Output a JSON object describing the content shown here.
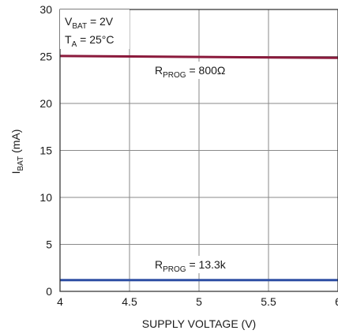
{
  "chart_data": {
    "type": "line",
    "xlabel": "SUPPLY VOLTAGE (V)",
    "ylabel": {
      "main": "I",
      "sub": "BAT",
      "tail": " (mA)"
    },
    "xlim": [
      4,
      6
    ],
    "ylim": [
      0,
      30
    ],
    "x_ticks": [
      4,
      4.5,
      5,
      5.5,
      6
    ],
    "x_tick_labels": [
      "4",
      "4.5",
      "5",
      "5.5",
      "6"
    ],
    "y_ticks": [
      0,
      5,
      10,
      15,
      20,
      25,
      30
    ],
    "y_tick_labels": [
      "0",
      "5",
      "10",
      "15",
      "20",
      "25",
      "30"
    ],
    "grid": true,
    "series": [
      {
        "color": "#8b1a3c",
        "x": [
          4,
          4.5,
          5,
          5.5,
          6
        ],
        "y": [
          25.05,
          25.0,
          24.95,
          24.9,
          24.85
        ]
      },
      {
        "color": "#2e4fa3",
        "x": [
          4,
          4.5,
          5,
          5.5,
          6
        ],
        "y": [
          1.2,
          1.2,
          1.2,
          1.2,
          1.2
        ]
      }
    ],
    "annotations": {
      "conditions_line1": {
        "main": "V",
        "sub": "BAT",
        "tail": " = 2V"
      },
      "conditions_line2": {
        "main": "T",
        "sub": "A",
        "tail": " = 25°C"
      },
      "series_label_upper": {
        "main": "R",
        "sub": "PROG",
        "tail": " = 800Ω"
      },
      "series_label_lower": {
        "main": "R",
        "sub": "PROG",
        "tail": " = 13.3k"
      }
    }
  }
}
